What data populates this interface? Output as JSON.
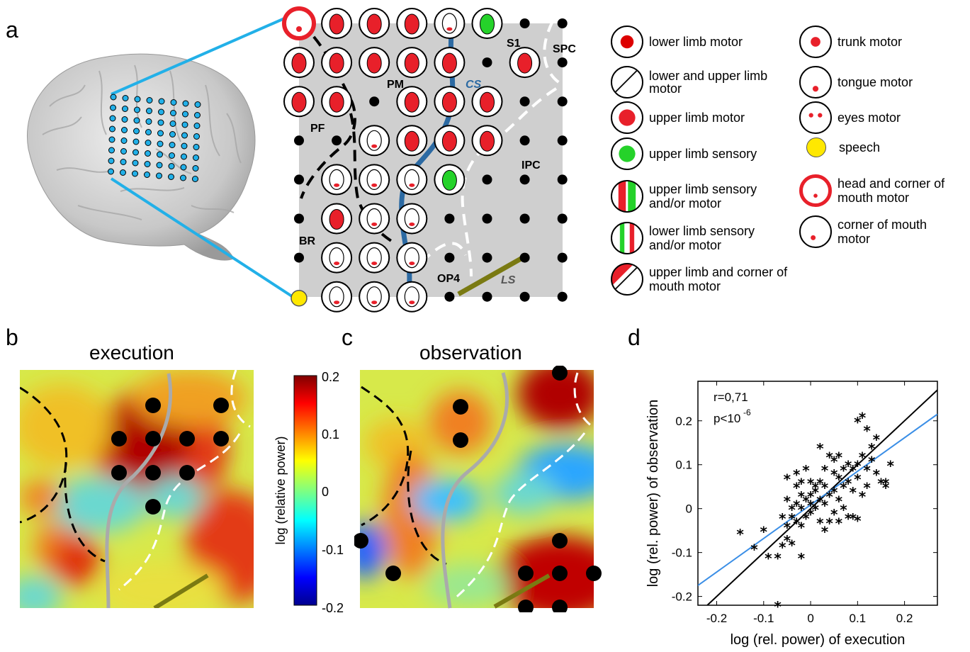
{
  "panels": {
    "a": "a",
    "b": "b",
    "c": "c",
    "d": "d"
  },
  "map_labels": {
    "S1": "S1",
    "SPC": "SPC",
    "PM": "PM",
    "CS": "CS",
    "PF": "PF",
    "IPC": "IPC",
    "BR": "BR",
    "OP4": "OP4",
    "LS": "LS"
  },
  "legend": [
    {
      "label": "lower limb motor",
      "icon": "leg-icon"
    },
    {
      "label": "lower and upper limb motor",
      "icon": "leg-hand-icon"
    },
    {
      "label": "upper limb motor",
      "icon": "hand-red-icon"
    },
    {
      "label": "upper limb sensory",
      "icon": "hand-green-icon"
    },
    {
      "label": "upper limb sensory and/or motor",
      "icon": "hands-question-icon"
    },
    {
      "label": "lower limb sensory and/or motor",
      "icon": "legs-question-icon"
    },
    {
      "label": "upper limb and corner of mouth motor",
      "icon": "hand-face-icon"
    },
    {
      "label": "trunk motor",
      "icon": "trunk-icon"
    },
    {
      "label": "tongue motor",
      "icon": "tongue-face-icon"
    },
    {
      "label": "eyes motor",
      "icon": "eyes-face-icon"
    },
    {
      "label": "speech",
      "icon": "yellow-dot-icon"
    },
    {
      "label": "head and corner of mouth motor",
      "icon": "head-red-icon"
    },
    {
      "label": "corner of mouth motor",
      "icon": "mouth-face-icon"
    }
  ],
  "heatmaps": {
    "execution_title": "execution",
    "observation_title": "observation",
    "colorbar_label": "log (relative power)",
    "colorbar_ticks": [
      "0.2",
      "0.1",
      "0",
      "-0.1",
      "-0.2"
    ]
  },
  "chart_data": {
    "type": "scatter",
    "xlabel": "log (rel. power) of execution",
    "ylabel": "log (rel. power) of observation",
    "xlim": [
      -0.24,
      0.27
    ],
    "ylim": [
      -0.22,
      0.29
    ],
    "xticks": [
      "-0.2",
      "-0.1",
      "0",
      "0.1",
      "0.2"
    ],
    "yticks": [
      "0.2",
      "0.1",
      "0",
      "-0.1",
      "-0.2"
    ],
    "annotation_r": "r=0,71",
    "annotation_p": "p<10",
    "annotation_p_exp": "-6",
    "lines": [
      {
        "name": "identity",
        "color": "#000000",
        "x": [
          -0.22,
          0.27
        ],
        "y": [
          -0.22,
          0.27
        ]
      },
      {
        "name": "fit",
        "color": "#3a8ee6",
        "x": [
          -0.24,
          0.27
        ],
        "y": [
          -0.175,
          0.215
        ]
      }
    ],
    "points": [
      [
        -0.07,
        -0.22
      ],
      [
        -0.15,
        -0.055
      ],
      [
        -0.12,
        -0.09
      ],
      [
        -0.1,
        -0.05
      ],
      [
        -0.09,
        -0.11
      ],
      [
        -0.07,
        -0.11
      ],
      [
        -0.06,
        -0.085
      ],
      [
        -0.05,
        -0.07
      ],
      [
        -0.04,
        -0.08
      ],
      [
        -0.02,
        -0.11
      ],
      [
        -0.06,
        -0.02
      ],
      [
        -0.05,
        -0.04
      ],
      [
        -0.04,
        -0.02
      ],
      [
        -0.03,
        -0.03
      ],
      [
        -0.02,
        -0.04
      ],
      [
        -0.01,
        -0.02
      ],
      [
        -0.04,
        0.0
      ],
      [
        -0.03,
        0.01
      ],
      [
        -0.02,
        0.0
      ],
      [
        -0.01,
        0.02
      ],
      [
        0.0,
        0.01
      ],
      [
        0.01,
        0.0
      ],
      [
        0.02,
        0.02
      ],
      [
        0.0,
        0.03
      ],
      [
        -0.02,
        0.03
      ],
      [
        0.01,
        0.04
      ],
      [
        0.02,
        0.06
      ],
      [
        0.03,
        0.05
      ],
      [
        0.04,
        0.03
      ],
      [
        0.03,
        0.01
      ],
      [
        0.05,
        -0.01
      ],
      [
        0.04,
        -0.03
      ],
      [
        0.06,
        0.02
      ],
      [
        0.07,
        0.05
      ],
      [
        0.06,
        0.07
      ],
      [
        0.05,
        0.08
      ],
      [
        0.07,
        0.09
      ],
      [
        0.08,
        0.06
      ],
      [
        0.09,
        0.04
      ],
      [
        0.1,
        0.07
      ],
      [
        0.11,
        0.03
      ],
      [
        0.12,
        0.05
      ],
      [
        0.1,
        0.1
      ],
      [
        0.11,
        0.12
      ],
      [
        0.12,
        0.09
      ],
      [
        0.13,
        0.11
      ],
      [
        0.14,
        0.08
      ],
      [
        0.15,
        0.06
      ],
      [
        0.16,
        0.06
      ],
      [
        0.17,
        0.1
      ],
      [
        0.14,
        0.16
      ],
      [
        0.12,
        0.18
      ],
      [
        0.1,
        0.2
      ],
      [
        0.11,
        0.21
      ],
      [
        0.02,
        0.14
      ],
      [
        0.04,
        0.12
      ],
      [
        0.05,
        0.11
      ],
      [
        0.06,
        0.12
      ],
      [
        0.08,
        0.1
      ],
      [
        0.09,
        -0.02
      ],
      [
        0.1,
        -0.025
      ],
      [
        0.03,
        0.09
      ],
      [
        -0.01,
        0.09
      ],
      [
        -0.03,
        0.08
      ],
      [
        -0.05,
        0.07
      ],
      [
        -0.03,
        0.05
      ],
      [
        0.0,
        0.06
      ],
      [
        0.07,
        0.0
      ],
      [
        0.08,
        -0.02
      ],
      [
        -0.05,
        0.02
      ],
      [
        0.16,
        0.05
      ],
      [
        0.13,
        0.14
      ],
      [
        0.09,
        0.09
      ],
      [
        0.05,
        0.04
      ],
      [
        0.01,
        0.05
      ],
      [
        -0.02,
        0.06
      ],
      [
        0.0,
        -0.01
      ],
      [
        0.02,
        -0.03
      ],
      [
        0.03,
        -0.05
      ],
      [
        0.06,
        -0.03
      ]
    ]
  }
}
